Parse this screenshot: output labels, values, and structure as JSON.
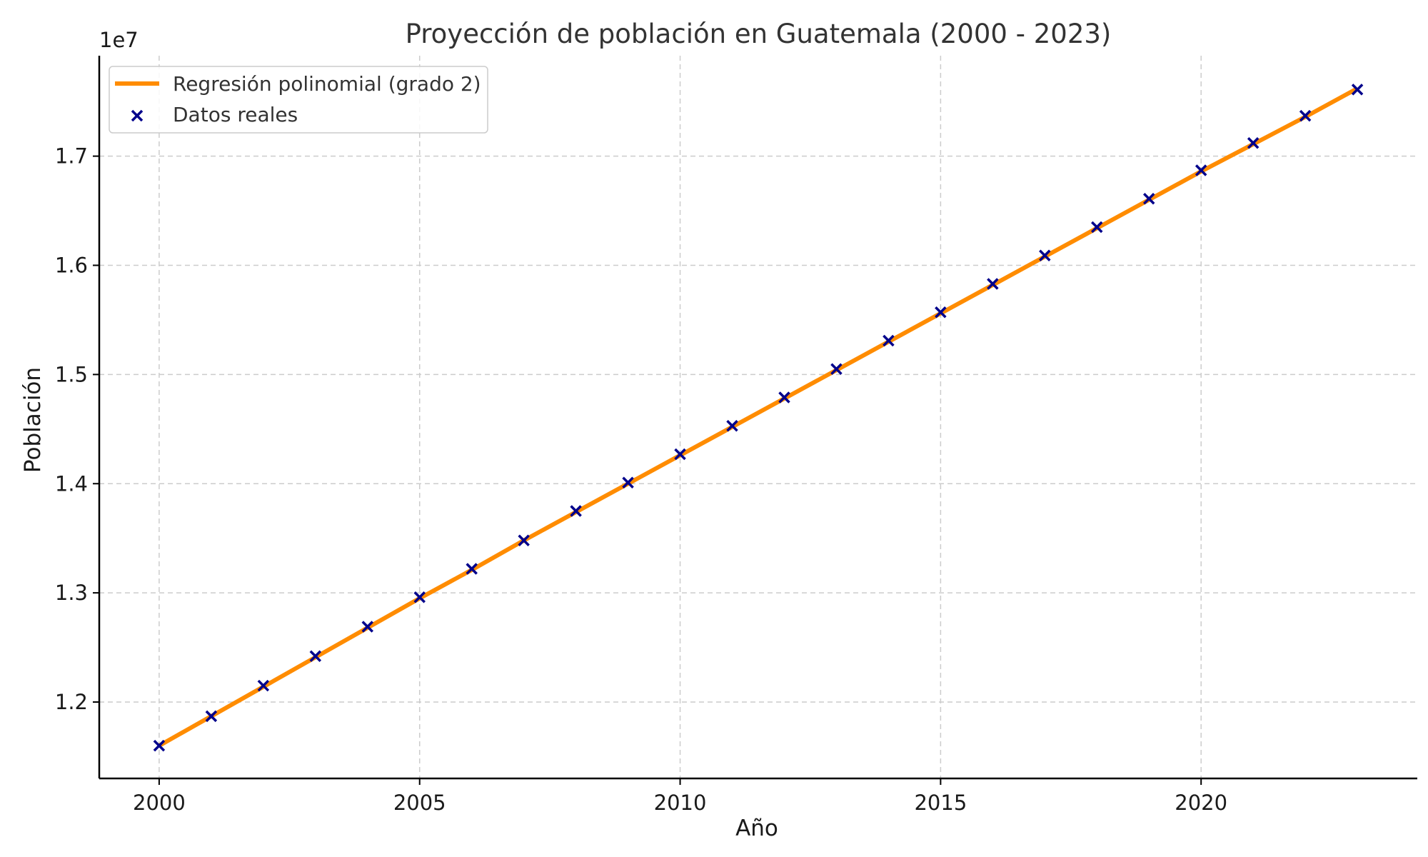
{
  "chart_data": {
    "type": "line",
    "title": "Proyección de población en Guatemala (2000 - 2023)",
    "xlabel": "Año",
    "ylabel": "Población",
    "y_offset_label": "1e7",
    "xlim": [
      1998.85,
      2024.15
    ],
    "ylim": [
      11300000,
      17920000
    ],
    "x_ticks": [
      2000,
      2005,
      2010,
      2015,
      2020
    ],
    "x_tick_labels": [
      "2000",
      "2005",
      "2010",
      "2015",
      "2020"
    ],
    "y_ticks": [
      12000000,
      13000000,
      14000000,
      15000000,
      16000000,
      17000000
    ],
    "y_tick_labels": [
      "1.2",
      "1.3",
      "1.4",
      "1.5",
      "1.6",
      "1.7"
    ],
    "grid": true,
    "legend_position": "top-left",
    "colors": {
      "fit": "#ff8c00",
      "points": "#00008b",
      "grid": "#cccccc",
      "axis": "#000000"
    },
    "series": [
      {
        "name": "Regresión polinomial (grado 2)",
        "kind": "line",
        "x": [
          2000,
          2001,
          2002,
          2003,
          2004,
          2005,
          2006,
          2007,
          2008,
          2009,
          2010,
          2011,
          2012,
          2013,
          2014,
          2015,
          2016,
          2017,
          2018,
          2019,
          2020,
          2021,
          2022,
          2023
        ],
        "y": [
          11600000,
          11870000,
          12140000,
          12410000,
          12680000,
          12950000,
          13210000,
          13480000,
          13740000,
          14000000,
          14260000,
          14520000,
          14780000,
          15040000,
          15300000,
          15560000,
          15820000,
          16080000,
          16340000,
          16600000,
          16860000,
          17110000,
          17360000,
          17620000
        ]
      },
      {
        "name": "Datos reales",
        "kind": "scatter",
        "marker": "x",
        "x": [
          2000,
          2001,
          2002,
          2003,
          2004,
          2005,
          2006,
          2007,
          2008,
          2009,
          2010,
          2011,
          2012,
          2013,
          2014,
          2015,
          2016,
          2017,
          2018,
          2019,
          2020,
          2021,
          2022,
          2023
        ],
        "y": [
          11600000,
          11870000,
          12150000,
          12420000,
          12690000,
          12960000,
          13220000,
          13480000,
          13750000,
          14010000,
          14270000,
          14530000,
          14790000,
          15050000,
          15310000,
          15570000,
          15830000,
          16090000,
          16350000,
          16610000,
          16870000,
          17120000,
          17370000,
          17610000
        ]
      }
    ]
  }
}
